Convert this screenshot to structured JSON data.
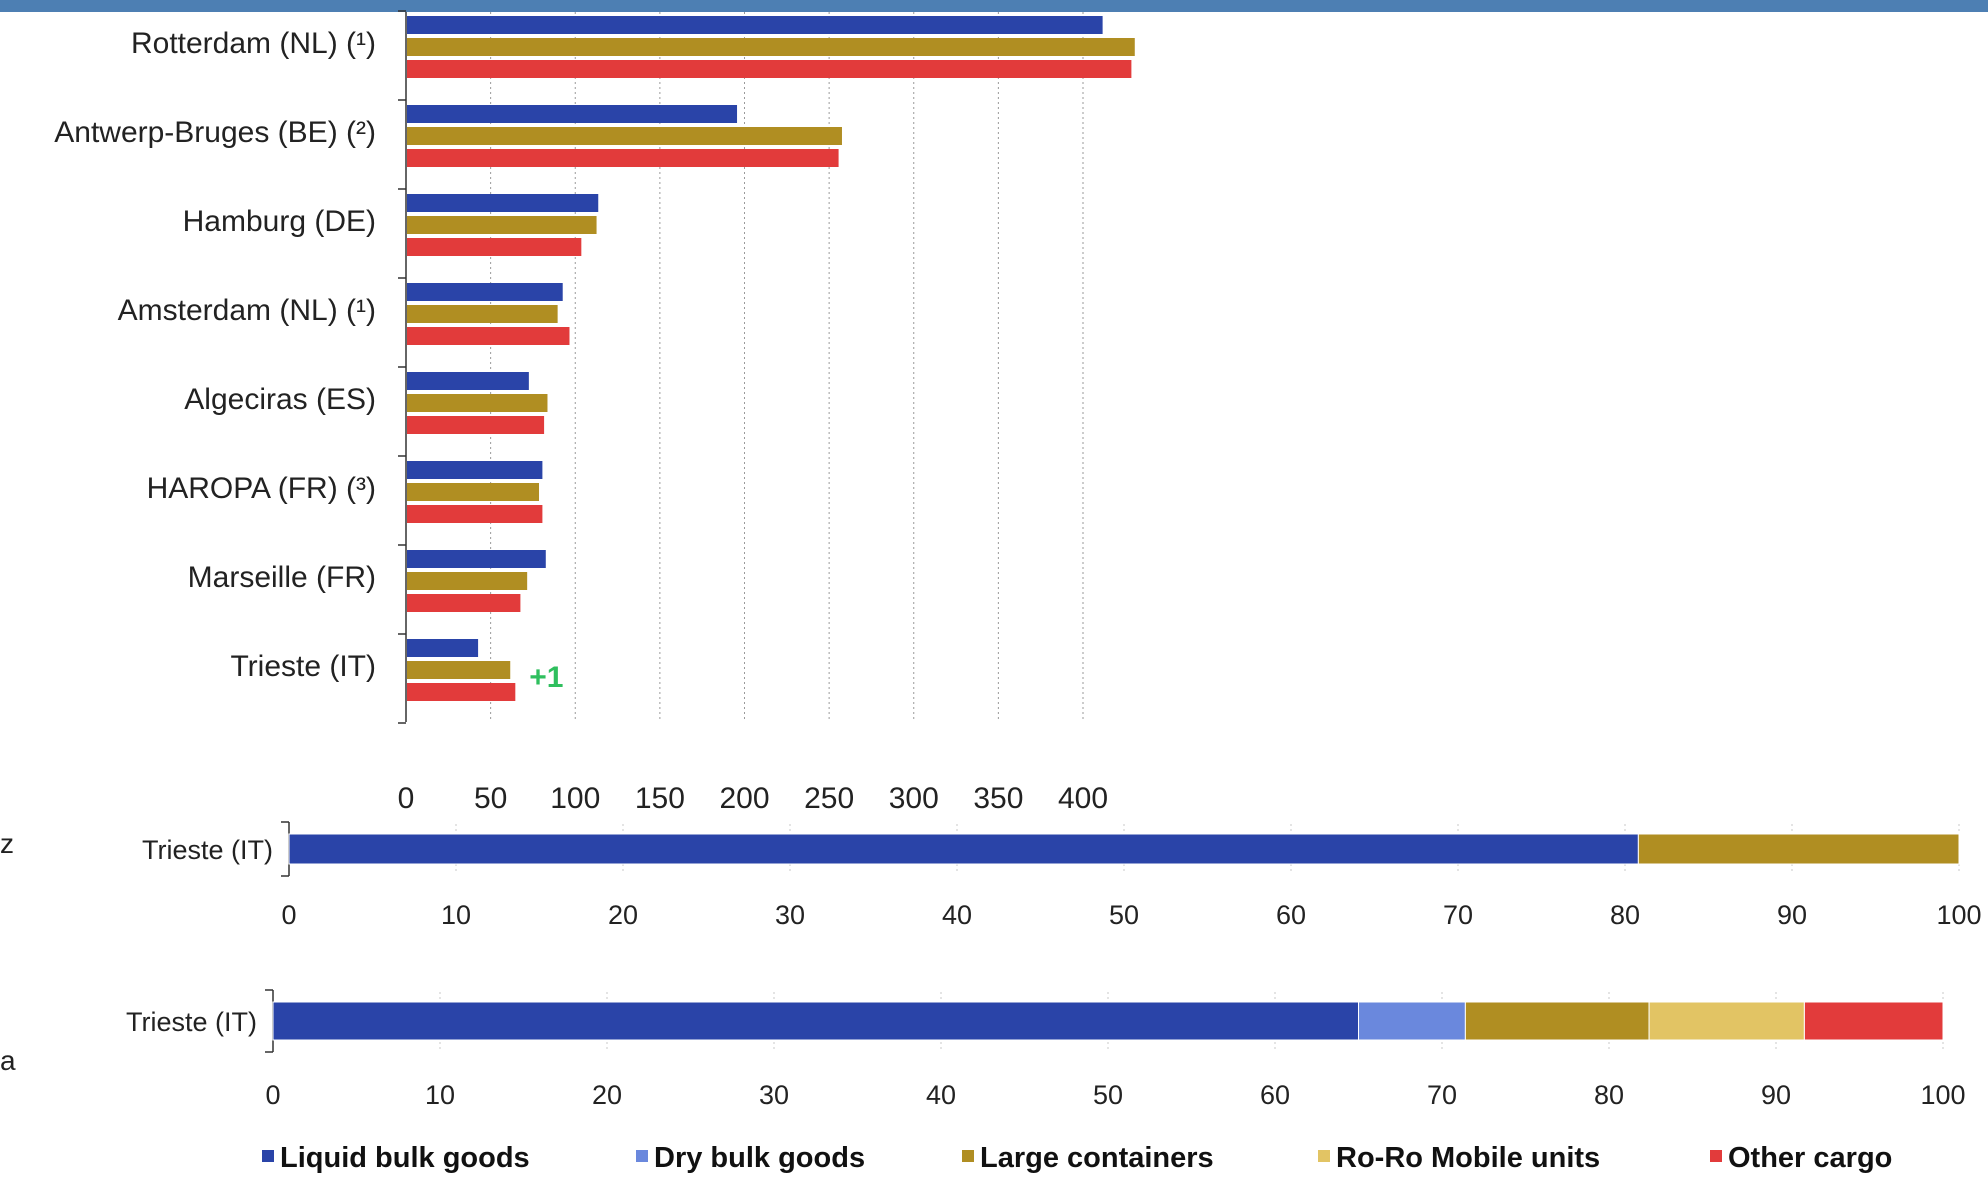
{
  "colors": {
    "liquid_bulk": "#2a44a8",
    "dry_bulk": "#6a88dd",
    "large_containers": "#b08e22",
    "roro": "#e2c464",
    "other": "#e23b3b",
    "header_bar": "#4d7fb3",
    "annotation": "#2fbf5e"
  },
  "side_letters": [
    "z",
    "a"
  ],
  "chart_data": [
    {
      "type": "bar",
      "orientation": "horizontal",
      "categories": [
        "Rotterdam (NL) (¹)",
        "Antwerp-Bruges (BE) (²)",
        "Hamburg (DE)",
        "Amsterdam (NL) (¹)",
        "Algeciras (ES)",
        "HAROPA (FR) (³)",
        "Marseille (FR)",
        "Trieste (IT)"
      ],
      "series": [
        {
          "color_key": "liquid_bulk",
          "values": [
            411,
            195,
            113,
            92,
            72,
            80,
            82,
            42
          ]
        },
        {
          "color_key": "large_containers",
          "values": [
            430,
            257,
            112,
            89,
            83,
            78,
            71,
            61
          ]
        },
        {
          "color_key": "other",
          "values": [
            428,
            255,
            103,
            96,
            81,
            80,
            67,
            64
          ]
        }
      ],
      "xticks": [
        0,
        50,
        100,
        150,
        200,
        250,
        300,
        350,
        400
      ],
      "xlim": [
        0,
        440
      ],
      "grid": "vertical dashed",
      "annotation": {
        "text": "+1",
        "category": "Trieste (IT)"
      }
    },
    {
      "type": "bar",
      "orientation": "horizontal",
      "stacked": true,
      "categories": [
        "Trieste (IT)"
      ],
      "segments": [
        {
          "color_key": "liquid_bulk",
          "value": 80.8
        },
        {
          "color_key": "large_containers",
          "value": 19.2
        }
      ],
      "xticks": [
        0,
        10,
        20,
        30,
        40,
        50,
        60,
        70,
        80,
        90,
        100
      ],
      "xlim": [
        0,
        100
      ]
    },
    {
      "type": "bar",
      "orientation": "horizontal",
      "stacked": true,
      "categories": [
        "Trieste (IT)"
      ],
      "segments": [
        {
          "color_key": "liquid_bulk",
          "value": 65.0
        },
        {
          "color_key": "dry_bulk",
          "value": 6.4
        },
        {
          "color_key": "large_containers",
          "value": 11.0
        },
        {
          "color_key": "roro",
          "value": 9.3
        },
        {
          "color_key": "other",
          "value": 8.3
        }
      ],
      "xticks": [
        0,
        10,
        20,
        30,
        40,
        50,
        60,
        70,
        80,
        90,
        100
      ],
      "xlim": [
        0,
        100
      ],
      "legend": {
        "placement": "bottom",
        "entries": [
          {
            "label": "Liquid bulk goods",
            "color_key": "liquid_bulk"
          },
          {
            "label": "Dry bulk goods",
            "color_key": "dry_bulk"
          },
          {
            "label": "Large containers",
            "color_key": "large_containers"
          },
          {
            "label": "Ro-Ro Mobile units",
            "color_key": "roro"
          },
          {
            "label": "Other cargo",
            "color_key": "other"
          }
        ]
      }
    }
  ]
}
